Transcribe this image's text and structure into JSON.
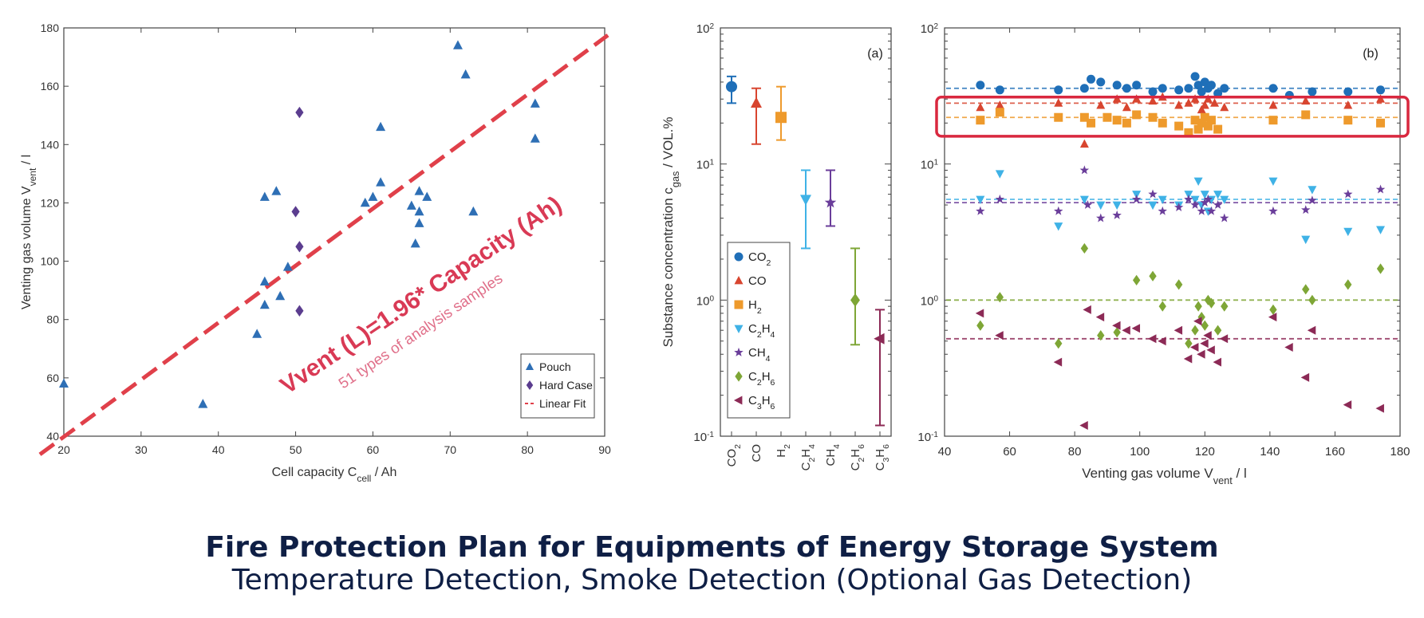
{
  "caption": {
    "title": "Fire Protection Plan for Equipments of Energy Storage System",
    "subtitle": "Temperature Detection, Smoke Detection (Optional Gas Detection)"
  },
  "chart_data": [
    {
      "type": "scatter",
      "xlabel": "Cell capacity  C",
      "xlabel_sub": "cell",
      "xlabel_unit": " / Ah",
      "ylabel": "Venting gas volume  V",
      "ylabel_sub": "vent",
      "ylabel_unit": " / l",
      "xlim": [
        20,
        90
      ],
      "ylim": [
        40,
        180
      ],
      "xticks": [
        20,
        30,
        40,
        50,
        60,
        70,
        80,
        90
      ],
      "yticks": [
        40,
        60,
        80,
        100,
        120,
        140,
        160,
        180
      ],
      "legend": {
        "position": "bottom-right",
        "entries": [
          "Pouch",
          "Hard Case",
          "Linear Fit"
        ]
      },
      "series": [
        {
          "name": "Pouch",
          "marker": "triangle-up",
          "color": "#2e6fb5",
          "points": [
            [
              20,
              58
            ],
            [
              38,
              51
            ],
            [
              45,
              75
            ],
            [
              46,
              85
            ],
            [
              46,
              93
            ],
            [
              46,
              122
            ],
            [
              47.5,
              124
            ],
            [
              48,
              88
            ],
            [
              49,
              98
            ],
            [
              59,
              120
            ],
            [
              60,
              122
            ],
            [
              61,
              127
            ],
            [
              61,
              146
            ],
            [
              65,
              119
            ],
            [
              65.5,
              106
            ],
            [
              66,
              113
            ],
            [
              66,
              117
            ],
            [
              66,
              124
            ],
            [
              67,
              122
            ],
            [
              71,
              174
            ],
            [
              72,
              164
            ],
            [
              73,
              117
            ],
            [
              81,
              142
            ],
            [
              81,
              154
            ]
          ]
        },
        {
          "name": "Hard Case",
          "marker": "diamond",
          "color": "#5b3d8f",
          "points": [
            [
              50,
              117
            ],
            [
              50.5,
              151
            ],
            [
              50.5,
              105
            ],
            [
              50.5,
              83
            ]
          ]
        }
      ],
      "fit": {
        "name": "Linear Fit",
        "slope": 1.96,
        "intercept": 0,
        "x": [
          20,
          90
        ]
      },
      "annotations": {
        "equation": "Vvent (L)=1.96* Capacity (Ah)",
        "samples": "51 types of analysis samples"
      },
      "colors": {
        "equation": "#d93a55",
        "samples": "#e0708a",
        "fit_line": "#e0404a"
      }
    },
    {
      "type": "scatter",
      "panel_label": "(a)",
      "ylabel": "Substance concentration  c",
      "ylabel_sub": "gas",
      "ylabel_unit": " / VOL.%",
      "yscale": "log",
      "ylim": [
        0.1,
        100
      ],
      "yticks": [
        "10",
        "10",
        "10",
        "10"
      ],
      "ytick_exponents": [
        "-1",
        "0",
        "1",
        "2"
      ],
      "categories": [
        {
          "main": "CO",
          "sub": "2"
        },
        {
          "main": "CO",
          "sub": ""
        },
        {
          "main": "H",
          "sub": "2"
        },
        {
          "main": "C",
          "sub": "2",
          "main2": "H",
          "sub2": "4"
        },
        {
          "main": "CH",
          "sub": "4"
        },
        {
          "main": "C",
          "sub": "2",
          "main2": "H",
          "sub2": "6"
        },
        {
          "main": "C",
          "sub": "3",
          "main2": "H",
          "sub2": "6"
        }
      ],
      "series": [
        {
          "name": "CO2",
          "mean": 37,
          "low": 28,
          "high": 44,
          "color": "#1f6fb8",
          "marker": "circle"
        },
        {
          "name": "CO",
          "mean": 28,
          "low": 14,
          "high": 36,
          "color": "#d8452f",
          "marker": "triangle-up"
        },
        {
          "name": "H2",
          "mean": 22,
          "low": 15,
          "high": 37,
          "color": "#ee9a2c",
          "marker": "square"
        },
        {
          "name": "C2H4",
          "mean": 5.5,
          "low": 2.4,
          "high": 9,
          "color": "#3fb2e6",
          "marker": "triangle-down"
        },
        {
          "name": "CH4",
          "mean": 5.2,
          "low": 3.5,
          "high": 9,
          "color": "#6a3d9a",
          "marker": "star"
        },
        {
          "name": "C2H6",
          "mean": 1.0,
          "low": 0.47,
          "high": 2.4,
          "color": "#7ea636",
          "marker": "diamond"
        },
        {
          "name": "C3H6",
          "mean": 0.52,
          "low": 0.12,
          "high": 0.85,
          "color": "#8c2a56",
          "marker": "triangle-left"
        }
      ],
      "legend": {
        "position": "bottom-left",
        "entries": [
          {
            "main": "CO",
            "sub": "2"
          },
          {
            "main": "CO",
            "sub": ""
          },
          {
            "main": "H",
            "sub": "2"
          },
          {
            "main": "C",
            "sub": "2",
            "main2": "H",
            "sub2": "4"
          },
          {
            "main": "CH",
            "sub": "4"
          },
          {
            "main": "C",
            "sub": "2",
            "main2": "H",
            "sub2": "6"
          },
          {
            "main": "C",
            "sub": "3",
            "main2": "H",
            "sub2": "6"
          }
        ]
      }
    },
    {
      "type": "scatter",
      "panel_label": "(b)",
      "xlabel": "Venting gas volume  V",
      "xlabel_sub": "vent",
      "xlabel_unit": " / l",
      "yscale": "log",
      "xlim": [
        40,
        180
      ],
      "ylim": [
        0.1,
        100
      ],
      "xticks": [
        40,
        60,
        80,
        100,
        120,
        140,
        160,
        180
      ],
      "yticks": [
        "10",
        "10",
        "10",
        "10"
      ],
      "ytick_exponents": [
        "-1",
        "0",
        "1",
        "2"
      ],
      "highlight": {
        "x": [
          40,
          180
        ],
        "y": [
          16,
          31
        ],
        "color": "#d9283f"
      },
      "series": [
        {
          "name": "CO2",
          "color": "#1f6fb8",
          "marker": "circle",
          "mean_line": 36,
          "points": [
            [
              51,
              38
            ],
            [
              57,
              35
            ],
            [
              75,
              35
            ],
            [
              83,
              36
            ],
            [
              85,
              42
            ],
            [
              88,
              40
            ],
            [
              93,
              38
            ],
            [
              96,
              36
            ],
            [
              99,
              38
            ],
            [
              104,
              34
            ],
            [
              107,
              36
            ],
            [
              112,
              35
            ],
            [
              115,
              36
            ],
            [
              117,
              44
            ],
            [
              118,
              38
            ],
            [
              119,
              34
            ],
            [
              120,
              40
            ],
            [
              121,
              36
            ],
            [
              122,
              38
            ],
            [
              124,
              33
            ],
            [
              126,
              36
            ],
            [
              141,
              36
            ],
            [
              146,
              32
            ],
            [
              153,
              34
            ],
            [
              164,
              34
            ],
            [
              174,
              35
            ]
          ]
        },
        {
          "name": "CO",
          "color": "#d8452f",
          "marker": "triangle-up",
          "mean_line": 28,
          "points": [
            [
              51,
              26
            ],
            [
              57,
              27
            ],
            [
              75,
              28
            ],
            [
              83,
              14
            ],
            [
              88,
              27
            ],
            [
              93,
              30
            ],
            [
              96,
              26
            ],
            [
              99,
              30
            ],
            [
              104,
              29
            ],
            [
              107,
              31
            ],
            [
              112,
              27
            ],
            [
              115,
              28
            ],
            [
              117,
              30
            ],
            [
              119,
              25
            ],
            [
              120,
              27
            ],
            [
              121,
              30
            ],
            [
              123,
              28
            ],
            [
              126,
              26
            ],
            [
              141,
              27
            ],
            [
              151,
              29
            ],
            [
              164,
              27
            ],
            [
              174,
              30
            ]
          ]
        },
        {
          "name": "H2",
          "color": "#ee9a2c",
          "marker": "square",
          "mean_line": 22,
          "points": [
            [
              51,
              21
            ],
            [
              57,
              24
            ],
            [
              75,
              22
            ],
            [
              83,
              22
            ],
            [
              85,
              20
            ],
            [
              90,
              22
            ],
            [
              93,
              21
            ],
            [
              96,
              20
            ],
            [
              99,
              23
            ],
            [
              104,
              22
            ],
            [
              107,
              20
            ],
            [
              112,
              19
            ],
            [
              115,
              17
            ],
            [
              117,
              21
            ],
            [
              118,
              18
            ],
            [
              119,
              20
            ],
            [
              120,
              22
            ],
            [
              121,
              19
            ],
            [
              122,
              21
            ],
            [
              124,
              18
            ],
            [
              141,
              21
            ],
            [
              151,
              23
            ],
            [
              164,
              21
            ],
            [
              174,
              20
            ]
          ]
        },
        {
          "name": "C2H4",
          "color": "#3fb2e6",
          "marker": "triangle-down",
          "mean_line": 5.5,
          "points": [
            [
              51,
              5.5
            ],
            [
              57,
              8.5
            ],
            [
              75,
              3.5
            ],
            [
              83,
              5.5
            ],
            [
              88,
              5
            ],
            [
              93,
              5
            ],
            [
              99,
              6
            ],
            [
              104,
              5
            ],
            [
              107,
              5.5
            ],
            [
              112,
              5
            ],
            [
              115,
              6
            ],
            [
              117,
              5.5
            ],
            [
              118,
              7.5
            ],
            [
              119,
              5
            ],
            [
              120,
              6
            ],
            [
              121,
              4.5
            ],
            [
              122,
              5.5
            ],
            [
              124,
              6
            ],
            [
              126,
              5.5
            ],
            [
              141,
              7.5
            ],
            [
              151,
              2.8
            ],
            [
              153,
              6.5
            ],
            [
              164,
              3.2
            ],
            [
              174,
              3.3
            ]
          ]
        },
        {
          "name": "CH4",
          "color": "#6a3d9a",
          "marker": "star",
          "mean_line": 5.2,
          "points": [
            [
              51,
              4.5
            ],
            [
              57,
              5.5
            ],
            [
              75,
              4.5
            ],
            [
              83,
              9
            ],
            [
              84,
              5
            ],
            [
              88,
              4
            ],
            [
              93,
              4.2
            ],
            [
              99,
              5.5
            ],
            [
              104,
              6
            ],
            [
              107,
              4.5
            ],
            [
              112,
              4.8
            ],
            [
              115,
              5.5
            ],
            [
              117,
              5
            ],
            [
              119,
              4.5
            ],
            [
              120,
              5.2
            ],
            [
              121,
              5.5
            ],
            [
              122,
              4.5
            ],
            [
              124,
              5
            ],
            [
              126,
              4
            ],
            [
              141,
              4.5
            ],
            [
              151,
              4.6
            ],
            [
              153,
              5.4
            ],
            [
              164,
              6
            ],
            [
              174,
              6.5
            ]
          ]
        },
        {
          "name": "C2H6",
          "color": "#7ea636",
          "marker": "diamond",
          "mean_line": 1.0,
          "points": [
            [
              51,
              0.65
            ],
            [
              57,
              1.05
            ],
            [
              75,
              0.48
            ],
            [
              83,
              2.4
            ],
            [
              88,
              0.55
            ],
            [
              93,
              0.58
            ],
            [
              99,
              1.4
            ],
            [
              104,
              1.5
            ],
            [
              107,
              0.9
            ],
            [
              112,
              1.3
            ],
            [
              115,
              0.48
            ],
            [
              117,
              0.6
            ],
            [
              118,
              0.9
            ],
            [
              119,
              0.75
            ],
            [
              120,
              0.65
            ],
            [
              121,
              1.0
            ],
            [
              122,
              0.95
            ],
            [
              124,
              0.6
            ],
            [
              126,
              0.9
            ],
            [
              141,
              0.85
            ],
            [
              151,
              1.2
            ],
            [
              153,
              1.0
            ],
            [
              164,
              1.3
            ],
            [
              174,
              1.7
            ]
          ]
        },
        {
          "name": "C3H6",
          "color": "#8c2a56",
          "marker": "triangle-left",
          "mean_line": 0.52,
          "points": [
            [
              51,
              0.8
            ],
            [
              57,
              0.55
            ],
            [
              75,
              0.35
            ],
            [
              83,
              0.12
            ],
            [
              84,
              0.85
            ],
            [
              88,
              0.75
            ],
            [
              93,
              0.65
            ],
            [
              96,
              0.6
            ],
            [
              99,
              0.62
            ],
            [
              104,
              0.52
            ],
            [
              107,
              0.5
            ],
            [
              112,
              0.6
            ],
            [
              115,
              0.37
            ],
            [
              117,
              0.45
            ],
            [
              118,
              0.7
            ],
            [
              119,
              0.4
            ],
            [
              120,
              0.48
            ],
            [
              121,
              0.55
            ],
            [
              122,
              0.43
            ],
            [
              124,
              0.35
            ],
            [
              126,
              0.52
            ],
            [
              141,
              0.75
            ],
            [
              146,
              0.45
            ],
            [
              151,
              0.27
            ],
            [
              153,
              0.6
            ],
            [
              164,
              0.17
            ],
            [
              174,
              0.16
            ]
          ]
        }
      ]
    }
  ]
}
